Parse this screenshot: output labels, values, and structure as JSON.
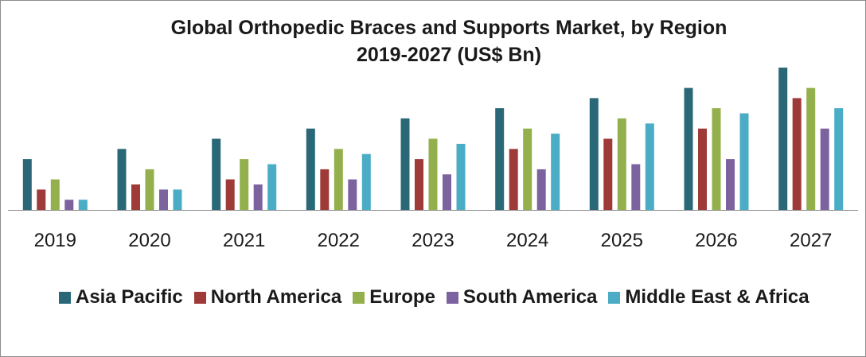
{
  "chart_data": {
    "type": "bar",
    "title": "Global Orthopedic Braces and Supports Market, by Region",
    "subtitle": "2019-2027 (US$ Bn)",
    "categories": [
      "2019",
      "2020",
      "2021",
      "2022",
      "2023",
      "2024",
      "2025",
      "2026",
      "2027"
    ],
    "series": [
      {
        "name": "Asia Pacific",
        "color": "#2a6877",
        "values": [
          5.0,
          6.0,
          7.0,
          8.0,
          9.0,
          10.0,
          11.0,
          12.0,
          14.0
        ]
      },
      {
        "name": "North America",
        "color": "#9e3a37",
        "values": [
          2.0,
          2.5,
          3.0,
          4.0,
          5.0,
          6.0,
          7.0,
          8.0,
          11.0
        ]
      },
      {
        "name": "Europe",
        "color": "#93b04d",
        "values": [
          3.0,
          4.0,
          5.0,
          6.0,
          7.0,
          8.0,
          9.0,
          10.0,
          12.0
        ]
      },
      {
        "name": "South America",
        "color": "#7c63a0",
        "values": [
          1.0,
          2.0,
          2.5,
          3.0,
          3.5,
          4.0,
          4.5,
          5.0,
          8.0
        ]
      },
      {
        "name": "Middle East & Africa",
        "color": "#4bacc6",
        "values": [
          1.0,
          2.0,
          4.5,
          5.5,
          6.5,
          7.5,
          8.5,
          9.5,
          10.0
        ]
      }
    ],
    "ylim": [
      0,
      14
    ],
    "grid": false,
    "legend_position": "bottom",
    "xlabel": "",
    "ylabel": ""
  }
}
